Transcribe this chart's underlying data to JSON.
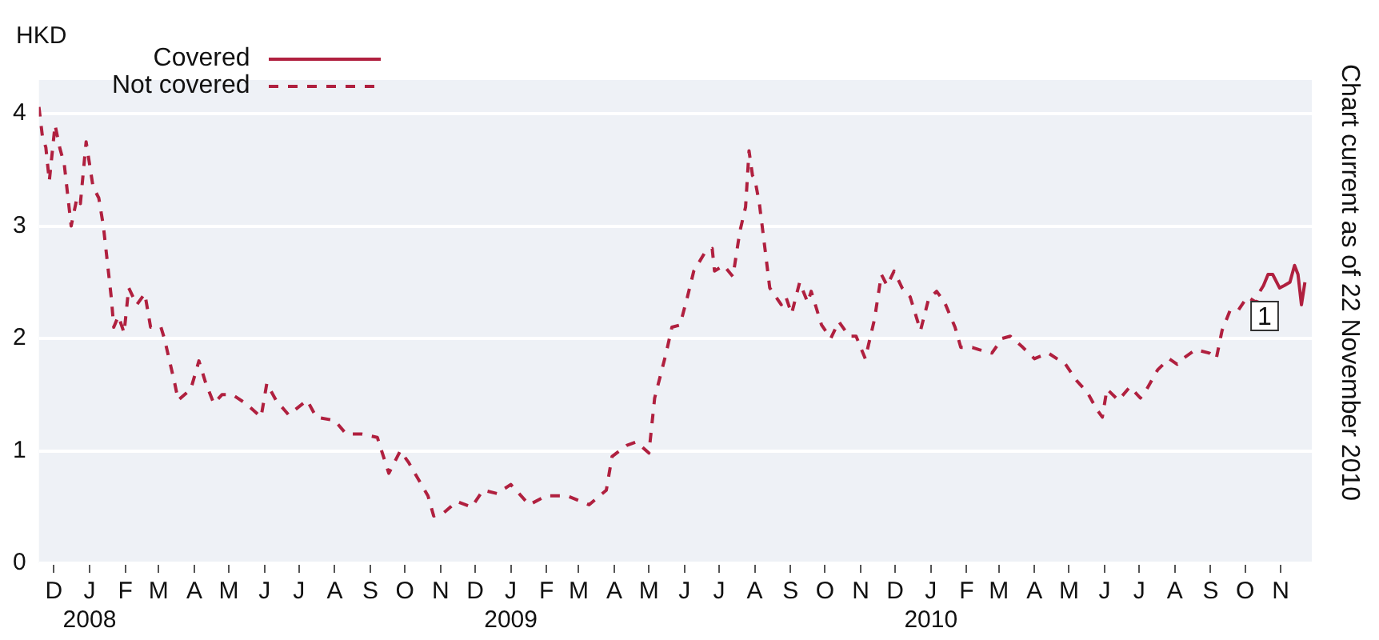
{
  "chart_data": {
    "type": "line",
    "ylabel": "HKD",
    "legend": "top left",
    "grid": "y",
    "xlim": [
      "2007-11-18",
      "2010-11-28"
    ],
    "ylim": [
      0,
      4.3
    ],
    "yticks": [
      0,
      1,
      2,
      3,
      4
    ],
    "xticks": [
      {
        "value": "2007-12-01",
        "label": "D"
      },
      {
        "value": "2008-01-01",
        "label": "J\n2008"
      },
      {
        "value": "2008-02-01",
        "label": "F"
      },
      {
        "value": "2008-03-01",
        "label": "M"
      },
      {
        "value": "2008-04-01",
        "label": "A"
      },
      {
        "value": "2008-05-01",
        "label": "M"
      },
      {
        "value": "2008-06-01",
        "label": "J"
      },
      {
        "value": "2008-07-01",
        "label": "J"
      },
      {
        "value": "2008-08-01",
        "label": "A"
      },
      {
        "value": "2008-09-01",
        "label": "S"
      },
      {
        "value": "2008-10-01",
        "label": "O"
      },
      {
        "value": "2008-11-01",
        "label": "N"
      },
      {
        "value": "2008-12-01",
        "label": "D"
      },
      {
        "value": "2009-01-01",
        "label": "J\n2009"
      },
      {
        "value": "2009-02-01",
        "label": "F"
      },
      {
        "value": "2009-03-01",
        "label": "M"
      },
      {
        "value": "2009-04-01",
        "label": "A"
      },
      {
        "value": "2009-05-01",
        "label": "M"
      },
      {
        "value": "2009-06-01",
        "label": "J"
      },
      {
        "value": "2009-07-01",
        "label": "J"
      },
      {
        "value": "2009-08-01",
        "label": "A"
      },
      {
        "value": "2009-09-01",
        "label": "S"
      },
      {
        "value": "2009-10-01",
        "label": "O"
      },
      {
        "value": "2009-11-01",
        "label": "N"
      },
      {
        "value": "2009-12-01",
        "label": "D"
      },
      {
        "value": "2010-01-01",
        "label": "J\n2010"
      },
      {
        "value": "2010-02-01",
        "label": "F"
      },
      {
        "value": "2010-03-01",
        "label": "M"
      },
      {
        "value": "2010-04-01",
        "label": "A"
      },
      {
        "value": "2010-05-01",
        "label": "M"
      },
      {
        "value": "2010-06-01",
        "label": "J"
      },
      {
        "value": "2010-07-01",
        "label": "J"
      },
      {
        "value": "2010-08-01",
        "label": "A"
      },
      {
        "value": "2010-09-01",
        "label": "S"
      },
      {
        "value": "2010-10-01",
        "label": "O"
      },
      {
        "value": "2010-11-01",
        "label": "N"
      }
    ],
    "series": [
      {
        "name": "Covered",
        "color": "#b0203f",
        "line_style": "solid",
        "x": [
          "2010-10-14",
          "2010-10-17",
          "2010-10-21",
          "2010-10-25",
          "2010-10-31",
          "2010-11-04",
          "2010-11-09",
          "2010-11-13",
          "2010-11-16",
          "2010-11-19",
          "2010-11-22"
        ],
        "values": [
          2.42,
          2.47,
          2.57,
          2.57,
          2.45,
          2.47,
          2.5,
          2.65,
          2.57,
          2.3,
          2.5
        ]
      },
      {
        "name": "Not covered",
        "color": "#b0203f",
        "line_style": "dashed",
        "x": [
          "2007-11-18",
          "2007-11-21",
          "2007-11-24",
          "2007-11-27",
          "2007-12-02",
          "2007-12-06",
          "2007-12-10",
          "2007-12-16",
          "2007-12-21",
          "2007-12-24",
          "2007-12-29",
          "2008-01-04",
          "2008-01-09",
          "2008-01-13",
          "2008-01-20",
          "2008-01-22",
          "2008-01-26",
          "2008-01-31",
          "2008-02-04",
          "2008-02-11",
          "2008-02-18",
          "2008-02-23",
          "2008-03-03",
          "2008-03-06",
          "2008-03-15",
          "2008-03-18",
          "2008-03-29",
          "2008-04-05",
          "2008-04-11",
          "2008-04-18",
          "2008-04-25",
          "2008-05-04",
          "2008-05-16",
          "2008-05-29",
          "2008-06-03",
          "2008-06-11",
          "2008-06-22",
          "2008-07-08",
          "2008-07-16",
          "2008-08-01",
          "2008-08-11",
          "2008-08-24",
          "2008-09-07",
          "2008-09-17",
          "2008-09-27",
          "2008-10-04",
          "2008-10-21",
          "2008-10-26",
          "2008-11-04",
          "2008-11-15",
          "2008-11-28",
          "2008-12-08",
          "2008-12-20",
          "2009-01-01",
          "2009-01-17",
          "2009-02-01",
          "2009-02-19",
          "2009-03-10",
          "2009-03-25",
          "2009-03-30",
          "2009-04-12",
          "2009-04-20",
          "2009-05-01",
          "2009-05-06",
          "2009-05-11",
          "2009-05-16",
          "2009-05-21",
          "2009-05-28",
          "2009-06-03",
          "2009-06-09",
          "2009-06-19",
          "2009-06-25",
          "2009-06-27",
          "2009-07-05",
          "2009-07-13",
          "2009-07-19",
          "2009-07-24",
          "2009-07-27",
          "2009-07-30",
          "2009-08-01",
          "2009-08-05",
          "2009-08-09",
          "2009-08-14",
          "2009-08-24",
          "2009-08-28",
          "2009-09-02",
          "2009-09-09",
          "2009-09-16",
          "2009-09-19",
          "2009-09-28",
          "2009-10-06",
          "2009-10-13",
          "2009-10-22",
          "2009-10-28",
          "2009-11-05",
          "2009-11-13",
          "2009-11-19",
          "2009-11-24",
          "2009-11-30",
          "2009-12-07",
          "2009-12-14",
          "2009-12-23",
          "2009-12-30",
          "2010-01-06",
          "2010-01-13",
          "2010-01-22",
          "2010-01-27",
          "2010-02-06",
          "2010-02-12",
          "2010-02-23",
          "2010-03-04",
          "2010-03-11",
          "2010-03-22",
          "2010-04-01",
          "2010-04-13",
          "2010-04-28",
          "2010-05-08",
          "2010-05-17",
          "2010-05-25",
          "2010-05-30",
          "2010-06-03",
          "2010-06-13",
          "2010-06-23",
          "2010-07-02",
          "2010-07-06",
          "2010-07-17",
          "2010-07-27",
          "2010-08-03",
          "2010-08-08",
          "2010-08-19",
          "2010-08-31",
          "2010-09-06",
          "2010-09-11",
          "2010-09-18",
          "2010-09-25",
          "2010-10-03",
          "2010-10-11",
          "2010-10-14"
        ],
        "values": [
          4.06,
          3.8,
          3.7,
          3.4,
          3.9,
          3.7,
          3.55,
          3.0,
          3.25,
          3.2,
          3.75,
          3.35,
          3.25,
          3.0,
          2.35,
          2.1,
          2.2,
          2.05,
          2.45,
          2.3,
          2.4,
          2.1,
          2.1,
          2.0,
          1.6,
          1.45,
          1.55,
          1.8,
          1.6,
          1.42,
          1.5,
          1.5,
          1.42,
          1.3,
          1.6,
          1.45,
          1.32,
          1.45,
          1.3,
          1.27,
          1.15,
          1.15,
          1.12,
          0.8,
          1.0,
          0.9,
          0.6,
          0.42,
          0.45,
          0.55,
          0.5,
          0.65,
          0.62,
          0.7,
          0.52,
          0.6,
          0.6,
          0.52,
          0.65,
          0.95,
          1.05,
          1.08,
          0.98,
          1.47,
          1.67,
          1.87,
          2.1,
          2.12,
          2.35,
          2.6,
          2.77,
          2.8,
          2.6,
          2.65,
          2.55,
          2.95,
          3.17,
          3.67,
          3.45,
          3.42,
          3.2,
          2.87,
          2.45,
          2.3,
          2.37,
          2.22,
          2.5,
          2.32,
          2.42,
          2.12,
          2.0,
          2.15,
          2.02,
          2.02,
          1.82,
          2.17,
          2.57,
          2.47,
          2.6,
          2.45,
          2.37,
          2.07,
          2.35,
          2.42,
          2.32,
          2.1,
          1.92,
          1.92,
          1.9,
          1.87,
          2.0,
          2.02,
          1.92,
          1.82,
          1.87,
          1.77,
          1.62,
          1.52,
          1.37,
          1.3,
          1.55,
          1.45,
          1.57,
          1.47,
          1.52,
          1.72,
          1.82,
          1.77,
          1.82,
          1.9,
          1.87,
          1.82,
          2.07,
          2.25,
          2.25,
          2.37,
          2.32,
          2.42
        ]
      }
    ],
    "annotations": [
      {
        "text": "1",
        "x": "2010-10-18",
        "y": 2.2
      },
      "Chart current as of 22 November 2010"
    ]
  }
}
